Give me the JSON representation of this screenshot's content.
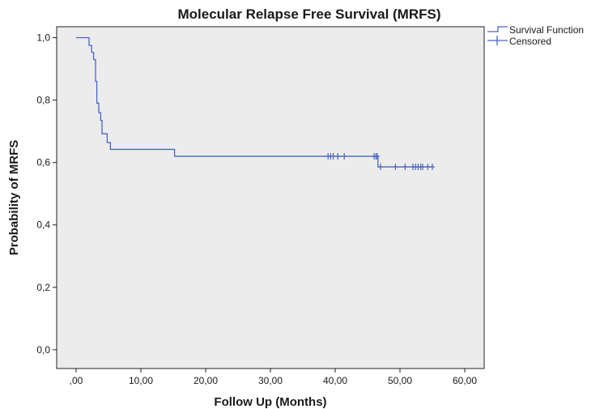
{
  "chart_data": {
    "type": "line",
    "title": "Molecular Relapse Free Survival (MRFS)",
    "xlabel": "Follow Up (Months)",
    "ylabel": "Probability of MRFS",
    "xlim": [
      -3,
      63
    ],
    "ylim": [
      -0.06,
      1.035
    ],
    "x_ticks": [
      0,
      10,
      20,
      30,
      40,
      50,
      60
    ],
    "x_tick_labels": [
      ",00",
      "10,00",
      "20,00",
      "30,00",
      "40,00",
      "50,00",
      "60,00"
    ],
    "y_ticks": [
      0,
      0.2,
      0.4,
      0.6,
      0.8,
      1.0
    ],
    "y_tick_labels": [
      "0,0",
      "0,2",
      "0,4",
      "0,6",
      "0,8",
      "1,0"
    ],
    "grid": false,
    "legend_position": "top-right-outside",
    "series": [
      {
        "name": "Survival Function",
        "color": "#4a66c0",
        "step_points": [
          [
            0,
            1.0
          ],
          [
            2.0,
            1.0
          ],
          [
            2.0,
            0.975
          ],
          [
            2.4,
            0.975
          ],
          [
            2.4,
            0.953
          ],
          [
            2.7,
            0.953
          ],
          [
            2.7,
            0.93
          ],
          [
            3.0,
            0.93
          ],
          [
            3.0,
            0.86
          ],
          [
            3.2,
            0.86
          ],
          [
            3.2,
            0.79
          ],
          [
            3.5,
            0.79
          ],
          [
            3.5,
            0.76
          ],
          [
            3.8,
            0.76
          ],
          [
            3.8,
            0.735
          ],
          [
            4.0,
            0.735
          ],
          [
            4.0,
            0.692
          ],
          [
            4.8,
            0.692
          ],
          [
            4.8,
            0.664
          ],
          [
            5.3,
            0.664
          ],
          [
            5.3,
            0.642
          ],
          [
            15.2,
            0.642
          ],
          [
            15.2,
            0.62
          ],
          [
            46.6,
            0.62
          ],
          [
            46.6,
            0.586
          ],
          [
            55,
            0.586
          ]
        ]
      },
      {
        "name": "Censored",
        "color": "#4a66c0",
        "marker": "+",
        "points": [
          [
            38.9,
            0.62
          ],
          [
            39.3,
            0.62
          ],
          [
            39.7,
            0.62
          ],
          [
            40.4,
            0.62
          ],
          [
            41.4,
            0.62
          ],
          [
            46.0,
            0.62
          ],
          [
            46.3,
            0.62
          ],
          [
            46.5,
            0.62
          ],
          [
            47.0,
            0.586
          ],
          [
            49.3,
            0.586
          ],
          [
            50.8,
            0.586
          ],
          [
            52.0,
            0.586
          ],
          [
            52.4,
            0.586
          ],
          [
            52.8,
            0.586
          ],
          [
            53.2,
            0.586
          ],
          [
            53.5,
            0.586
          ],
          [
            54.3,
            0.586
          ],
          [
            55.0,
            0.586
          ]
        ]
      }
    ]
  },
  "legend": {
    "items": [
      {
        "label": "Survival Function",
        "symbol": "step-line"
      },
      {
        "label": "Censored",
        "symbol": "plus-marker"
      }
    ]
  },
  "colors": {
    "plot_background": "#ececec",
    "line": "#4a66c0",
    "axis": "#222222"
  }
}
